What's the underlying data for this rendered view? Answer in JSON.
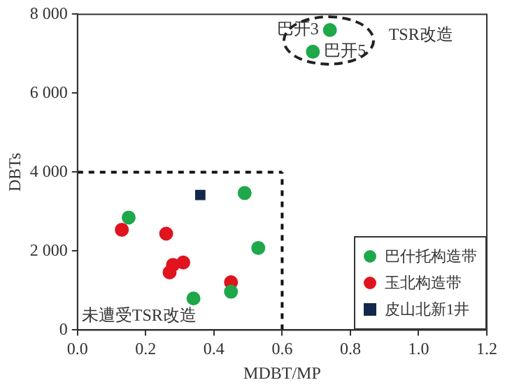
{
  "chart_data": {
    "type": "scatter",
    "xlabel": "MDBT/MP",
    "ylabel": "DBTs",
    "xlim": [
      0,
      1.2
    ],
    "xticks": [
      {
        "value": 0,
        "label": "0.0"
      },
      0.2,
      0.4,
      0.6,
      0.8,
      {
        "value": 1,
        "label": "1.0"
      },
      1.2
    ],
    "ylim": [
      0,
      8000
    ],
    "yticks": [
      0,
      {
        "value": 2000,
        "label": "2 000"
      },
      {
        "value": 4000,
        "label": "4 000"
      },
      {
        "value": 6000,
        "label": "6 000"
      },
      {
        "value": 8000,
        "label": "8 000"
      }
    ],
    "grid": false,
    "legend": "bottom right",
    "marker": "circle",
    "series": [
      {
        "name": "巴什托构造带",
        "color": "#1fa84a",
        "x": [
          0.15,
          0.49,
          0.53,
          0.34,
          0.45,
          0.74,
          0.69
        ],
        "values": [
          2850,
          3470,
          2080,
          800,
          970,
          7600,
          7050
        ]
      },
      {
        "name": "玉北构造带",
        "color": "#e0141e",
        "x": [
          0.13,
          0.26,
          0.28,
          0.31,
          0.27,
          0.45
        ],
        "values": [
          2540,
          2440,
          1650,
          1710,
          1460,
          1210
        ]
      },
      {
        "name": "皮山北新1井",
        "color": "#14284b",
        "marker": "square",
        "x": [
          0.36
        ],
        "values": [
          3420
        ]
      }
    ],
    "ref_lines": [
      {
        "axis": "x",
        "value": 0.6,
        "line_style": "dashed"
      },
      {
        "axis": "y",
        "value": 4000,
        "line_style": "dashed"
      }
    ],
    "annotations": [
      {
        "text": "巴开3",
        "x": 0.74,
        "y": 7600
      },
      {
        "text": "巴开5",
        "x": 0.69,
        "y": 7050
      },
      "TSR改造",
      "未遭受TSR改造"
    ]
  }
}
